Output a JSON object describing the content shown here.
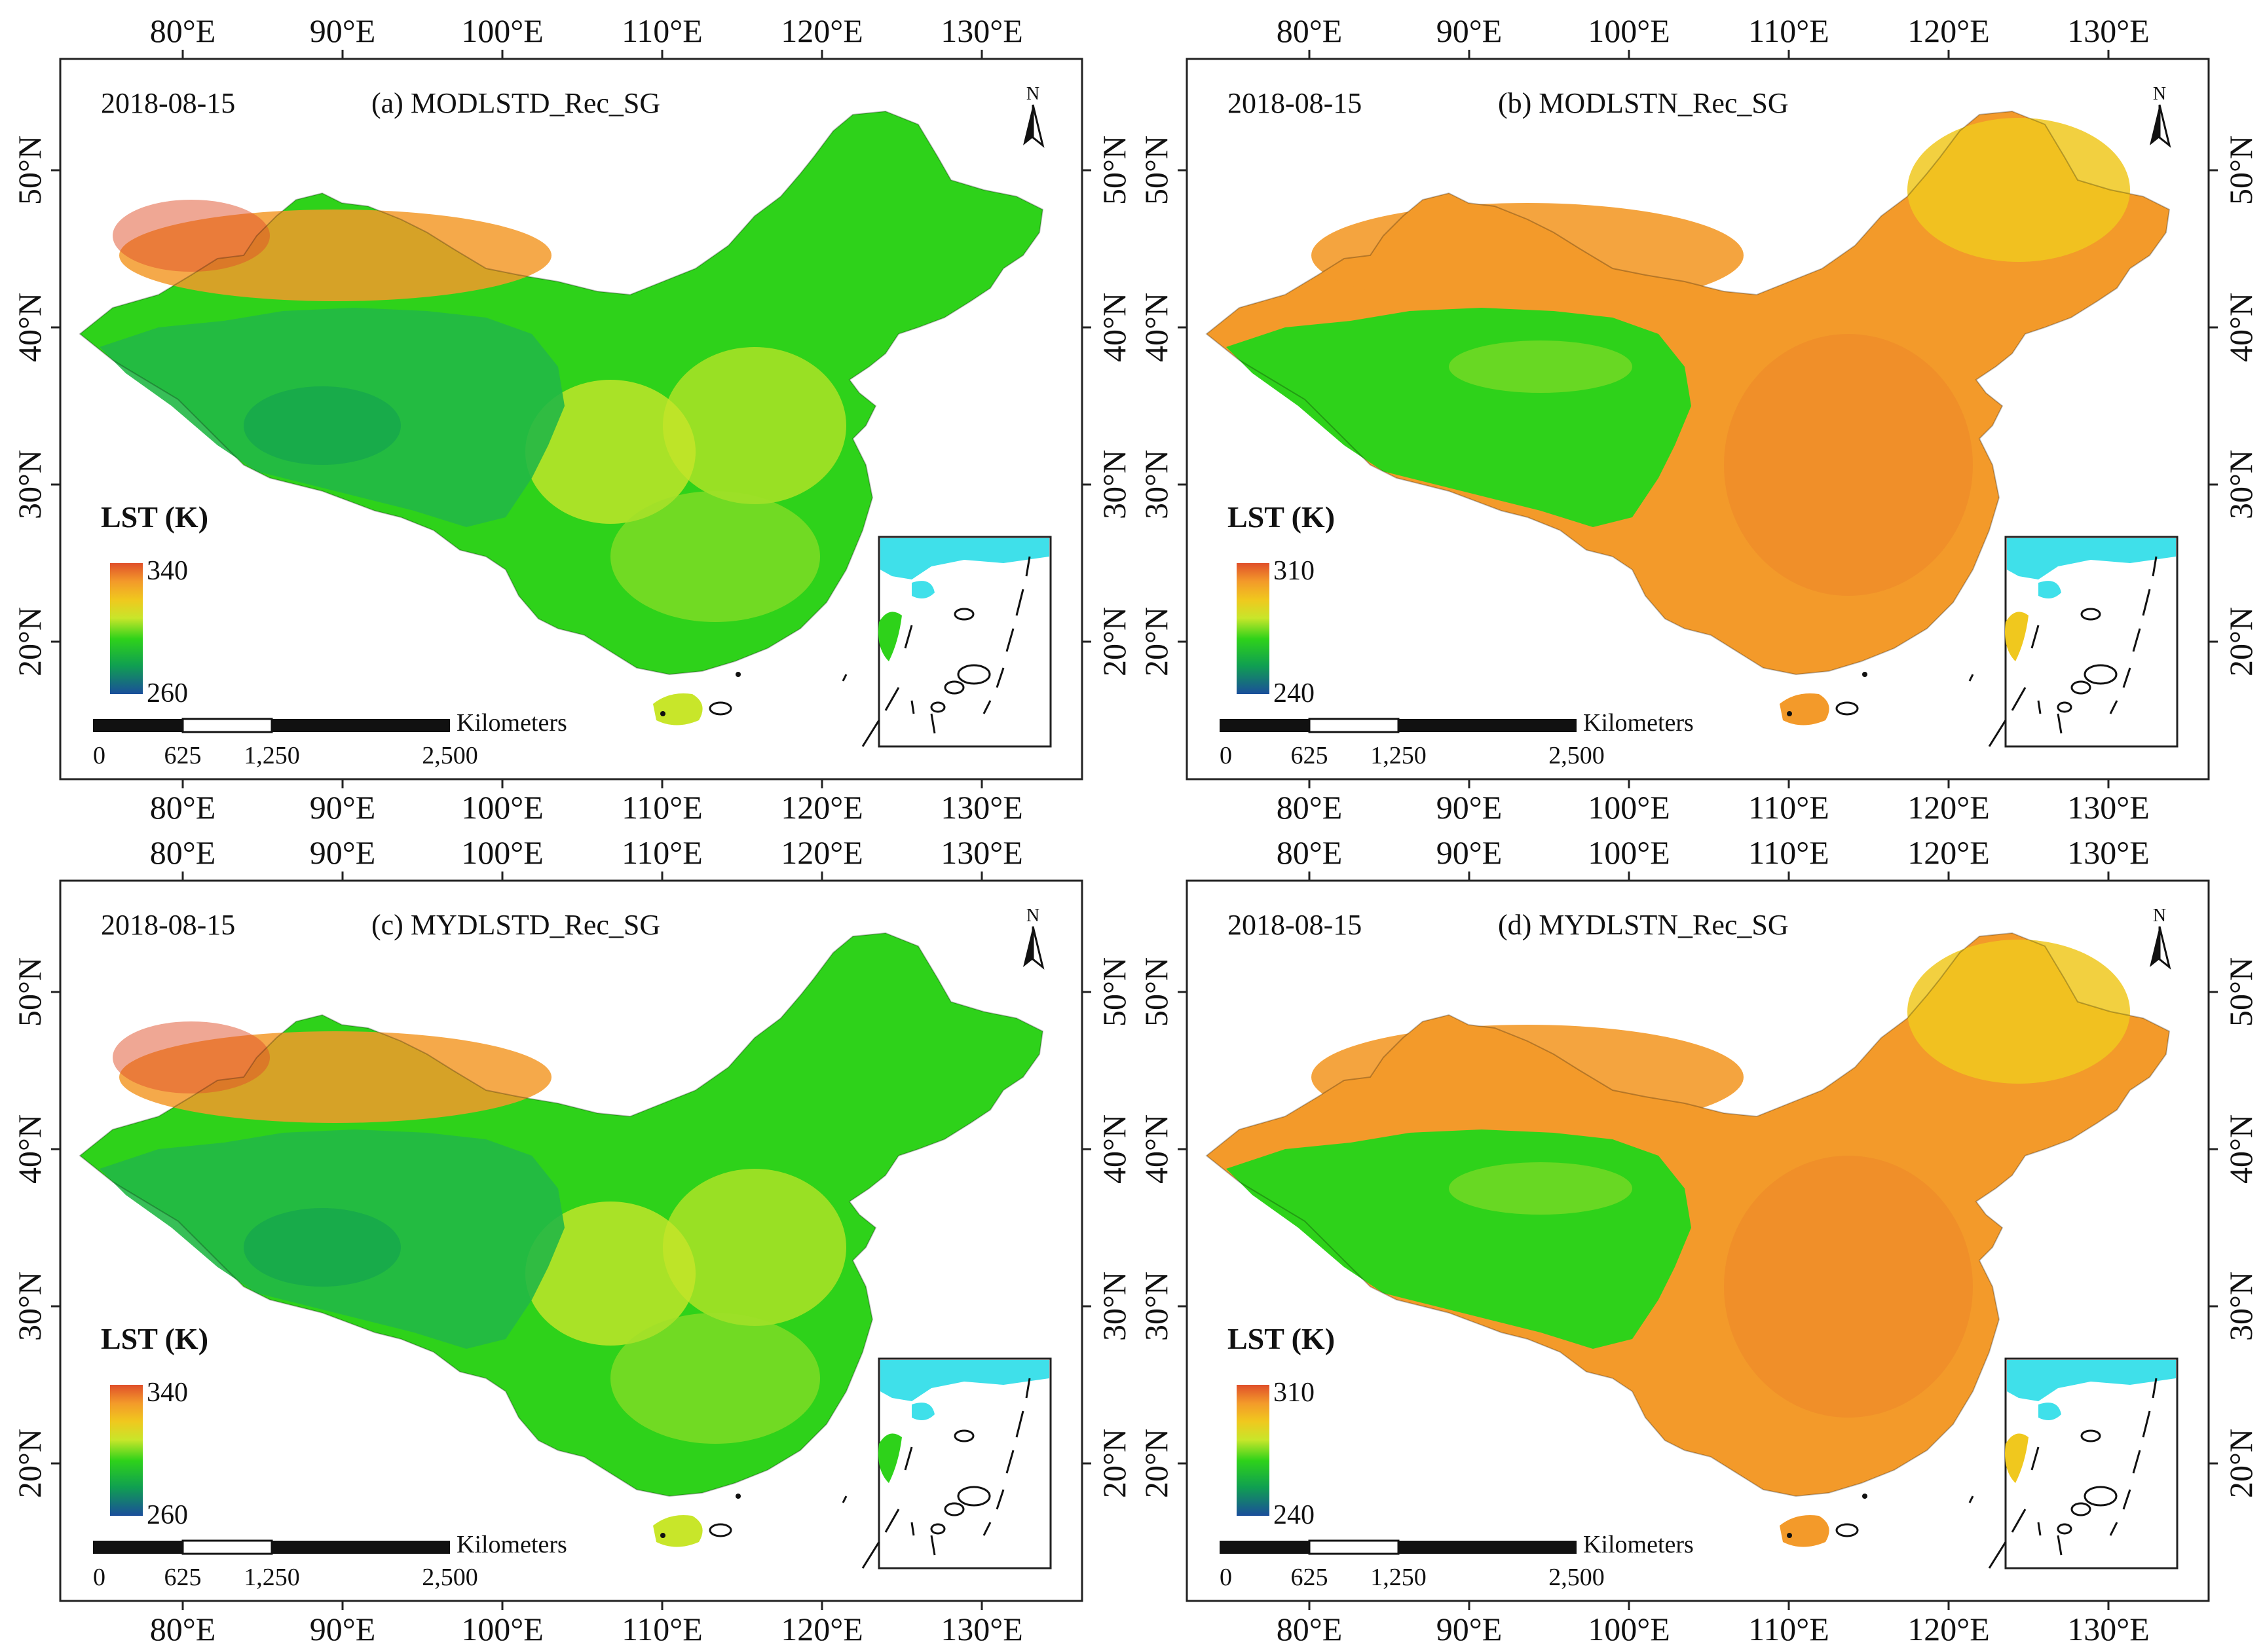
{
  "panels": [
    {
      "date": "2018-08-15",
      "title": "(a)  MODLSTD_Rec_SG",
      "legend": {
        "title": "LST (K)",
        "max": "340",
        "min": "260"
      },
      "rendering": "day"
    },
    {
      "date": "2018-08-15",
      "title": "(b)  MODLSTN_Rec_SG",
      "legend": {
        "title": "LST (K)",
        "max": "310",
        "min": "240"
      },
      "rendering": "night"
    },
    {
      "date": "2018-08-15",
      "title": "(c)  MYDLSTD_Rec_SG",
      "legend": {
        "title": "LST (K)",
        "max": "340",
        "min": "260"
      },
      "rendering": "day"
    },
    {
      "date": "2018-08-15",
      "title": "(d)  MYDLSTN_Rec_SG",
      "legend": {
        "title": "LST (K)",
        "max": "310",
        "min": "240"
      },
      "rendering": "night"
    }
  ],
  "lon_labels": [
    "80°E",
    "90°E",
    "100°E",
    "110°E",
    "120°E",
    "130°E"
  ],
  "lat_labels": [
    "50°N",
    "40°N",
    "30°N",
    "20°N"
  ],
  "scalebar": {
    "unit": "Kilometers",
    "ticks": [
      "0",
      "625",
      "1,250",
      "2,500"
    ]
  },
  "north_arrow": "N",
  "colors": {
    "ramp": [
      "#1a4e9b",
      "#10a050",
      "#2ed21a",
      "#c8e62a",
      "#f0c81e",
      "#f39a2a",
      "#e0502a"
    ],
    "ocean_inset": "#3fe0ea",
    "frame": "#222222"
  }
}
